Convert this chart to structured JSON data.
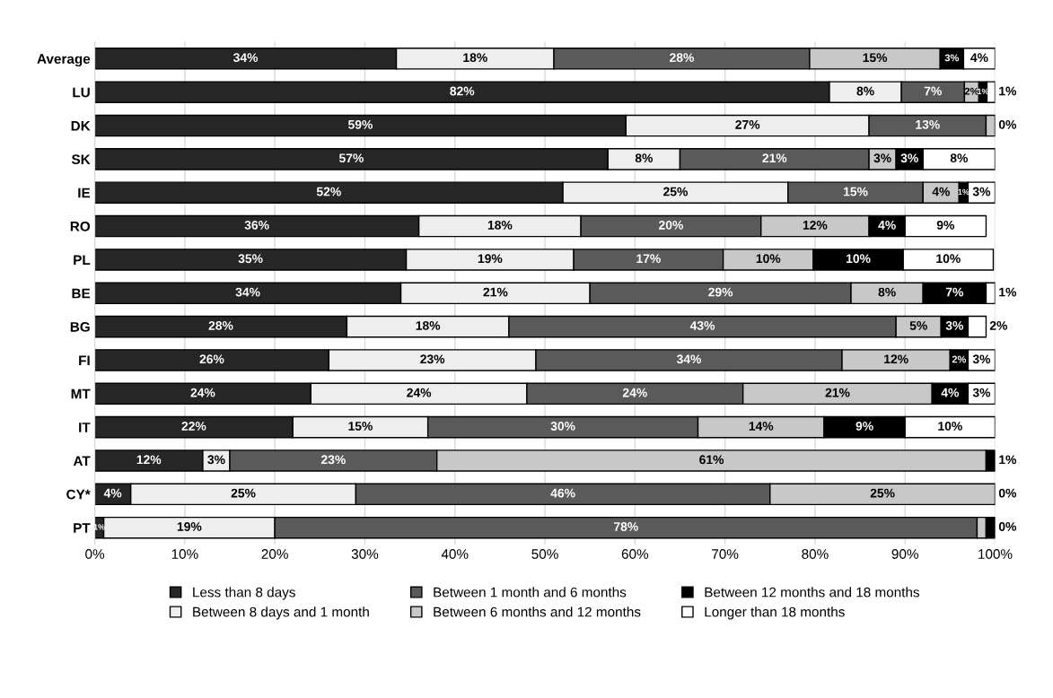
{
  "chart_data": {
    "type": "bar",
    "orientation": "horizontal",
    "stacked": true,
    "categories": [
      "Average",
      "LU",
      "DK",
      "SK",
      "IE",
      "RO",
      "PL",
      "BE",
      "BG",
      "FI",
      "MT",
      "IT",
      "AT",
      "CY*",
      "PT"
    ],
    "series": [
      {
        "name": "Less than 8 days",
        "color": "#262626",
        "values": [
          33.5,
          81.6,
          59,
          57,
          52,
          36,
          34.6,
          34,
          28,
          26,
          24,
          22,
          12,
          4,
          1
        ],
        "value_labels": [
          "34%",
          "82%",
          "59%",
          "57%",
          "52%",
          "36%",
          "35%",
          "34%",
          "28%",
          "26%",
          "24%",
          "22%",
          "12%",
          "4%",
          "1%"
        ]
      },
      {
        "name": "Between 8 days and 1 month",
        "color": "#eeeeee",
        "values": [
          17.5,
          8,
          27,
          8,
          25,
          18,
          18.6,
          21,
          18,
          23,
          24,
          15,
          3,
          25,
          19
        ],
        "value_labels": [
          "18%",
          "8%",
          "27%",
          "8%",
          "25%",
          "18%",
          "19%",
          "21%",
          "18%",
          "23%",
          "24%",
          "15%",
          "3%",
          "25%",
          "19%"
        ]
      },
      {
        "name": "Between 1 month and 6 months",
        "color": "#5a5a5a",
        "values": [
          28.4,
          7,
          13,
          21,
          15,
          20,
          16.6,
          29,
          43,
          34,
          24,
          30,
          23,
          46,
          78
        ],
        "value_labels": [
          "28%",
          "7%",
          "13%",
          "21%",
          "15%",
          "20%",
          "17%",
          "29%",
          "43%",
          "34%",
          "24%",
          "30%",
          "23%",
          "46%",
          "78%"
        ]
      },
      {
        "name": "Between 6 months and 12 months",
        "color": "#c8c8c8",
        "values": [
          14.5,
          1.6,
          1,
          3,
          4,
          12,
          10,
          8,
          5,
          12,
          21,
          14,
          61,
          25,
          1
        ],
        "value_labels": [
          "15%",
          "2%",
          null,
          "3%",
          "4%",
          "12%",
          "10%",
          "8%",
          "5%",
          "12%",
          "21%",
          "14%",
          "61%",
          "25%",
          null
        ]
      },
      {
        "name": "Between 12 months and 18 months",
        "color": "#000000",
        "values": [
          2.6,
          0.9,
          0,
          3,
          1,
          4,
          10,
          7,
          3,
          2,
          4,
          9,
          1,
          0,
          1
        ],
        "value_labels": [
          "3%",
          "1%",
          null,
          "3%",
          "1%",
          "4%",
          "10%",
          "7%",
          "3%",
          "2%",
          "4%",
          "9%",
          "1%",
          null,
          null
        ]
      },
      {
        "name": "Longer than 18 months",
        "color": "#ffffff",
        "values": [
          3.5,
          0.9,
          0,
          8,
          3,
          9,
          10,
          1,
          2,
          3,
          3,
          10,
          0,
          0,
          0
        ],
        "value_labels": [
          "4%",
          "1%",
          "0%",
          "8%",
          "3%",
          "9%",
          "10%",
          "1%",
          "2%",
          "3%",
          "3%",
          "10%",
          null,
          "0%",
          "0%"
        ]
      }
    ],
    "xlim": [
      0,
      100
    ],
    "xticks": [
      {
        "value": 0,
        "label": "0%"
      },
      {
        "value": 10,
        "label": "10%"
      },
      {
        "value": 20,
        "label": "20%"
      },
      {
        "value": 30,
        "label": "30%"
      },
      {
        "value": 40,
        "label": "40%"
      },
      {
        "value": 50,
        "label": "50%"
      },
      {
        "value": 60,
        "label": "60%"
      },
      {
        "value": 70,
        "label": "70%"
      },
      {
        "value": 80,
        "label": "80%"
      },
      {
        "value": 90,
        "label": "90%"
      },
      {
        "value": 100,
        "label": "100%"
      }
    ],
    "grid": "x",
    "legend": "bottom"
  }
}
